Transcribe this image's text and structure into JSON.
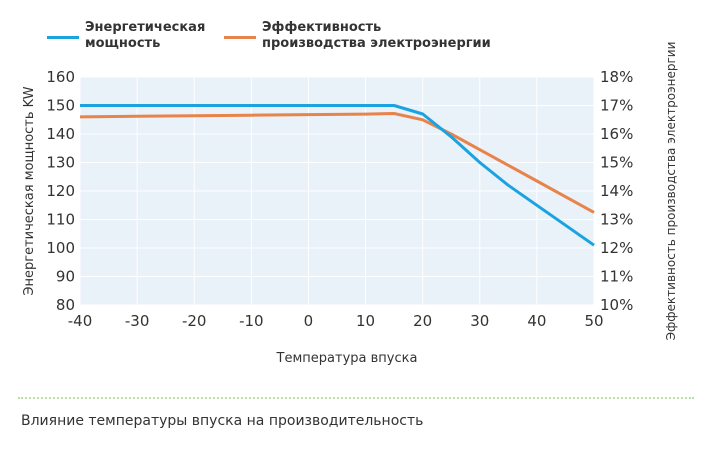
{
  "legend": {
    "power_lines": [
      "Энергетическая",
      "мощность"
    ],
    "efficiency_lines": [
      "Эффективность",
      "производства электроэнергии"
    ]
  },
  "caption": "Влияние температуры впуска на производительность",
  "colors": {
    "power": "#1aa3e0",
    "efficiency": "#e8834a",
    "plot_bg": "#e9f1f9",
    "grid": "#ffffff"
  },
  "chart_data": {
    "type": "line",
    "x": [
      -40,
      -30,
      -20,
      -10,
      0,
      10,
      15,
      20,
      25,
      30,
      35,
      40,
      45,
      50
    ],
    "xlabel": "Температура впуска",
    "xlim": [
      -40,
      50
    ],
    "x_ticks": [
      "-40",
      "-30",
      "-20",
      "-10",
      "0",
      "10",
      "20",
      "30",
      "40",
      "50"
    ],
    "y_left": {
      "label": "Энергетическая мощность KW",
      "lim": [
        80,
        160
      ],
      "ticks": [
        "80",
        "90",
        "100",
        "110",
        "120",
        "130",
        "140",
        "150",
        "160"
      ]
    },
    "y_right": {
      "label": "Эффективность производства электроэнергии",
      "lim": [
        10,
        18
      ],
      "unit": "%",
      "ticks": [
        "10%",
        "11%",
        "12%",
        "13%",
        "14%",
        "15%",
        "16%",
        "17%",
        "18%"
      ]
    },
    "series": [
      {
        "name": "Энергетическая мощность",
        "axis": "left",
        "values": [
          150,
          150,
          150,
          150,
          150,
          150,
          150,
          147,
          139,
          130,
          122,
          115,
          108,
          101
        ]
      },
      {
        "name": "Эффективность производства электроэнергии",
        "axis": "right",
        "values": [
          16.6,
          16.62,
          16.64,
          16.66,
          16.68,
          16.7,
          16.72,
          16.5,
          16.0,
          15.45,
          14.9,
          14.35,
          13.8,
          13.25
        ]
      }
    ],
    "grid": true
  }
}
